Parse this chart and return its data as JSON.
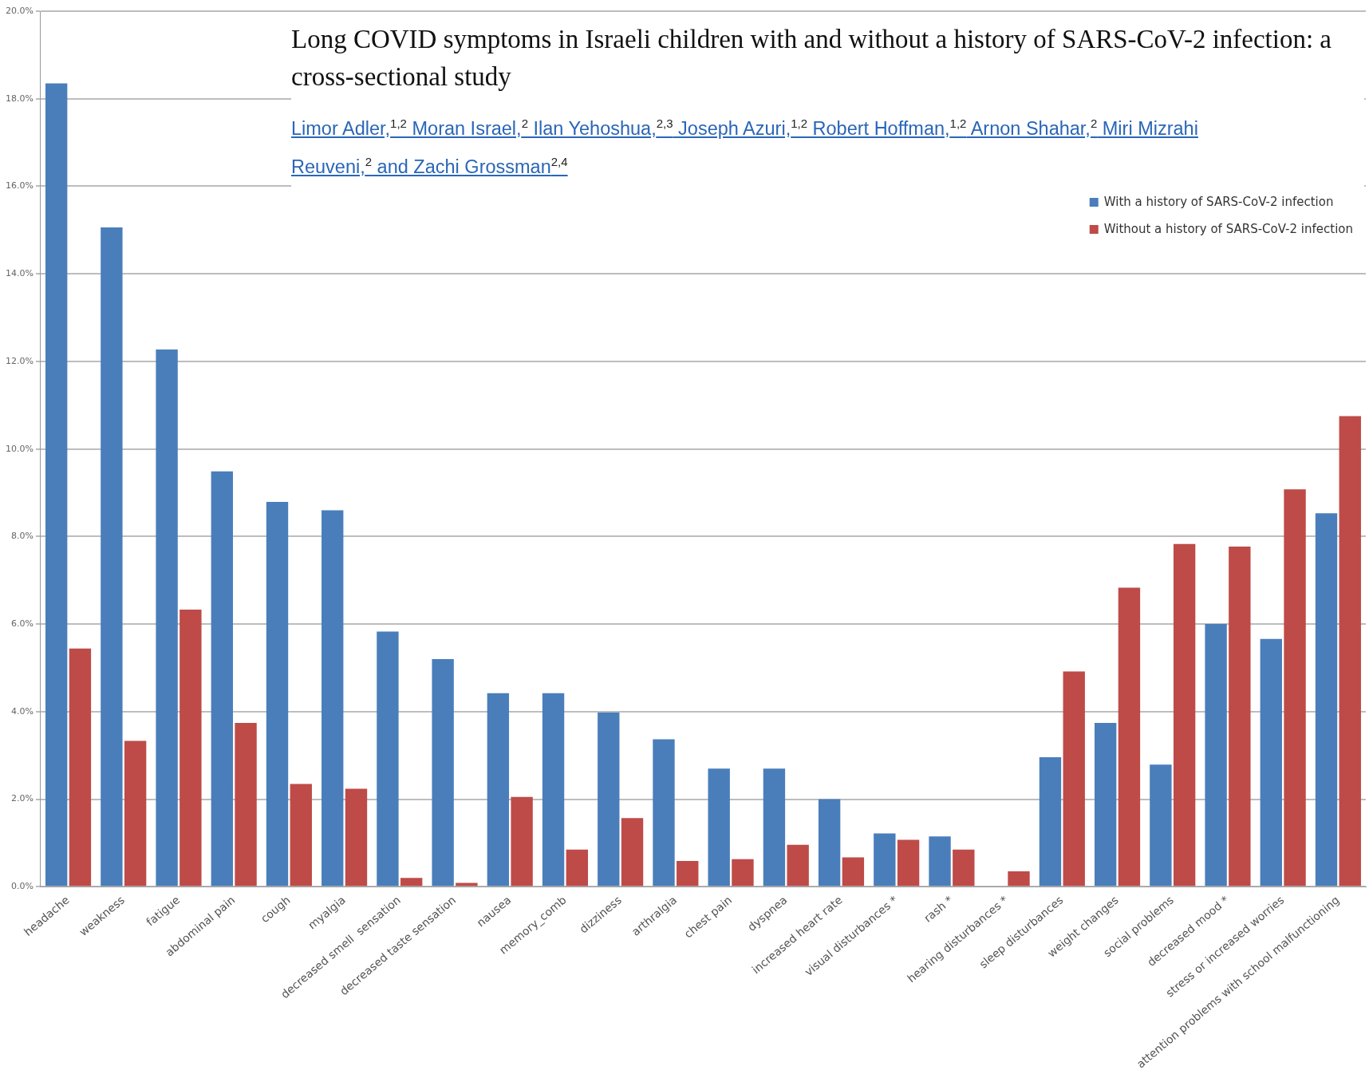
{
  "chart_data": {
    "type": "bar",
    "title": "Long COVID symptoms in Israeli children with and without a history of SARS-CoV-2 infection: a cross-sectional study",
    "subtitle": "Limor Adler,$^{1,2}$ Moran Israel,$^{2}$ Ilan Yehoshua,$^{2,3}$ Joseph Azuri,$^{1,2}$ Robert Hoffman,$^{1,2}$ Arnon Shahar,$^{2}$ Miri Mizrahi Reuveni,$^{2}$ and Zachi Grossman$^{2,4}$",
    "categories": [
      "headache",
      "weakness",
      "fatigue",
      "abdominal pain",
      "cough",
      "myalgia",
      "decreased smell  sensation",
      "decreased taste sensation",
      "nausea",
      "memory_comb",
      "dizziness",
      "arthralgia",
      "chest pain",
      "dyspnea",
      "increased heart rate",
      "visual disturbances *",
      "rash *",
      "hearing disturbances *",
      "sleep disturbances",
      "weight changes",
      "social problems",
      "decreased mood *",
      "stress or increased worries",
      "attention problems with school malfunctioning"
    ],
    "series": [
      {
        "name": "With a history of SARS-CoV-2 infection",
        "color": "#4a7ebb",
        "values": [
          18.35,
          15.06,
          12.27,
          9.49,
          8.79,
          8.6,
          5.83,
          5.2,
          4.42,
          4.42,
          3.98,
          3.37,
          2.7,
          2.7,
          2.0,
          1.22,
          1.15,
          0,
          2.96,
          3.74,
          2.79,
          6.0,
          5.66,
          8.53
        ]
      },
      {
        "name": "Without a history of SARS-CoV-2 infection",
        "color": "#be4b48",
        "values": [
          5.44,
          3.33,
          6.33,
          3.74,
          2.35,
          2.24,
          0.2,
          0.09,
          2.05,
          0.85,
          1.57,
          0.59,
          0.63,
          0.96,
          0.67,
          1.07,
          0.85,
          0.35,
          4.92,
          6.83,
          7.83,
          7.77,
          9.08,
          10.75
        ]
      }
    ],
    "ylim": [
      0,
      20
    ],
    "yticks": [
      {
        "value": 0,
        "label": "0.0%"
      },
      {
        "value": 2,
        "label": "2.0%"
      },
      {
        "value": 4,
        "label": "4.0%"
      },
      {
        "value": 6,
        "label": "6.0%"
      },
      {
        "value": 8,
        "label": "8.0%"
      },
      {
        "value": 10,
        "label": "10.0%"
      },
      {
        "value": 12,
        "label": "12.0%"
      },
      {
        "value": 14,
        "label": "14.0%"
      },
      {
        "value": 16,
        "label": "16.0%"
      },
      {
        "value": 18,
        "label": "18.0%"
      },
      {
        "value": 20,
        "label": "20.0%"
      }
    ],
    "grid": "y",
    "legend": "top right"
  }
}
